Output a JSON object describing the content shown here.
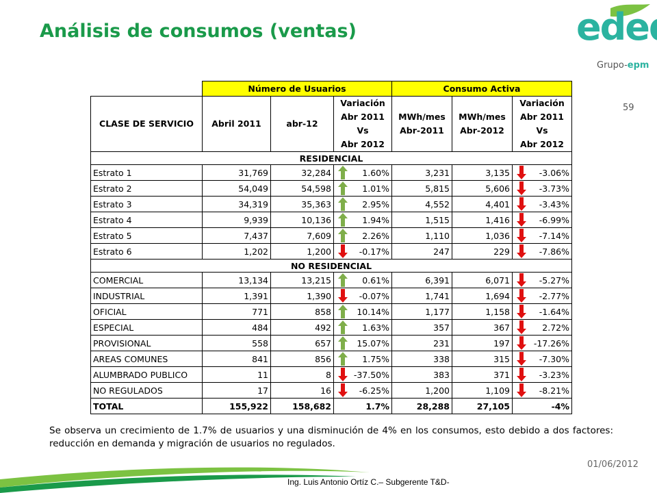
{
  "header": {
    "title": "Análisis de consumos (ventas)",
    "logo": "edeq",
    "group_logo_prefix": "Grupo-",
    "group_logo_suffix": "epm",
    "page_number": "59"
  },
  "table": {
    "groups": [
      "Número de Usuarios",
      "Consumo Activa"
    ],
    "columns": [
      "CLASE DE SERVICIO",
      "Abril 2011",
      "abr-12",
      "Variación\nAbr 2011 Vs\nAbr 2012",
      "MWh/mes\nAbr-2011",
      "MWh/mes\nAbr-2012",
      "Variación\nAbr 2011 Vs\nAbr 2012"
    ],
    "sections": [
      {
        "name": "RESIDENCIAL",
        "rows": [
          [
            "Estrato 1",
            "31,769",
            "32,284",
            "1.60%",
            "3,231",
            "3,135",
            "-3.06%"
          ],
          [
            "Estrato 2",
            "54,049",
            "54,598",
            "1.01%",
            "5,815",
            "5,606",
            "-3.73%"
          ],
          [
            "Estrato 3",
            "34,319",
            "35,363",
            "2.95%",
            "4,552",
            "4,401",
            "-3.43%"
          ],
          [
            "Estrato 4",
            "9,939",
            "10,136",
            "1.94%",
            "1,515",
            "1,416",
            "-6.99%"
          ],
          [
            "Estrato 5",
            "7,437",
            "7,609",
            "2.26%",
            "1,110",
            "1,036",
            "-7.14%"
          ],
          [
            "Estrato 6",
            "1,202",
            "1,200",
            "-0.17%",
            "247",
            "229",
            "-7.86%"
          ]
        ]
      },
      {
        "name": "NO RESIDENCIAL",
        "rows": [
          [
            "COMERCIAL",
            "13,134",
            "13,215",
            "0.61%",
            "6,391",
            "6,071",
            "-5.27%"
          ],
          [
            "INDUSTRIAL",
            "1,391",
            "1,390",
            "-0.07%",
            "1,741",
            "1,694",
            "-2.77%"
          ],
          [
            "OFICIAL",
            "771",
            "858",
            "10.14%",
            "1,177",
            "1,158",
            "-1.64%"
          ],
          [
            "ESPECIAL",
            "484",
            "492",
            "1.63%",
            "357",
            "367",
            "2.72%"
          ],
          [
            "PROVISIONAL",
            "558",
            "657",
            "15.07%",
            "231",
            "197",
            "-17.26%"
          ],
          [
            "AREAS COMUNES",
            "841",
            "856",
            "1.75%",
            "338",
            "315",
            "-7.30%"
          ],
          [
            "ALUMBRADO PUBLICO",
            "11",
            "8",
            "-37.50%",
            "383",
            "371",
            "-3.23%"
          ],
          [
            "NO REGULADOS",
            "17",
            "16",
            "-6.25%",
            "1,200",
            "1,109",
            "-8.21%"
          ]
        ]
      }
    ],
    "total": [
      "TOTAL",
      "155,922",
      "158,682",
      "1.7%",
      "28,288",
      "27,105",
      "-4%"
    ]
  },
  "note": "Se observa un crecimiento de 1.7% de usuarios y una disminución de 4% en los consumos, esto debido a dos factores: reducción en demanda y migración de usuarios no regulados.",
  "footer": {
    "date": "01/06/2012",
    "author": "Ing. Luis Antonio Ortíz C.– Subgerente T&D-"
  }
}
